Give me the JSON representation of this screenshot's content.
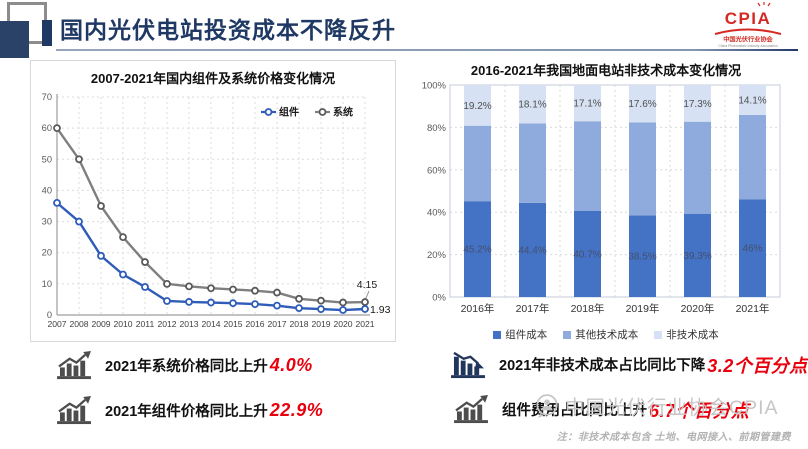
{
  "page": {
    "background": "#FFFFFF",
    "accent_navy": "#1F3864",
    "accent_red": "#E8000D"
  },
  "header": {
    "title": "国内光伏电站投资成本不降反升",
    "logo": {
      "acronym": "CPIA",
      "org_cn": "中国光伏行业协会",
      "org_en": "China Photovoltaic Industry Association",
      "color": "#D42A23"
    }
  },
  "chart_data": [
    {
      "id": "module-system-price",
      "type": "line",
      "title": "2007-2021年国内组件及系统价格变化情况",
      "x": [
        "2007",
        "2008",
        "2009",
        "2010",
        "2011",
        "2012",
        "2013",
        "2014",
        "2015",
        "2016",
        "2017",
        "2018",
        "2019",
        "2020",
        "2021"
      ],
      "series": [
        {
          "name": "组件",
          "color": "#2E5CB8",
          "marker_color": "#2E5CB8",
          "values": [
            36,
            30,
            19,
            13,
            9,
            4.5,
            4.2,
            4.0,
            3.8,
            3.5,
            3.0,
            2.2,
            1.9,
            1.6,
            1.93
          ],
          "end_label": "1.93"
        },
        {
          "name": "系统",
          "color": "#7F7F7F",
          "marker_color": "#595959",
          "values": [
            60,
            50,
            35,
            25,
            17,
            10,
            9.2,
            8.6,
            8.2,
            7.8,
            7.2,
            5.2,
            4.6,
            4.0,
            4.15
          ],
          "end_label": "4.15"
        }
      ],
      "ylim": [
        0,
        70
      ],
      "yticks": [
        0,
        10,
        20,
        30,
        40,
        50,
        60,
        70
      ],
      "grid": "dashed",
      "legend_position": "top-right"
    },
    {
      "id": "non-technical-cost-share",
      "type": "bar",
      "stacked": true,
      "title": "2016-2021年我国地面电站非技术成本变化情况",
      "categories": [
        "2016年",
        "2017年",
        "2018年",
        "2019年",
        "2020年",
        "2021年"
      ],
      "series": [
        {
          "name": "组件成本",
          "color": "#4472C4",
          "values": [
            45.2,
            44.4,
            40.7,
            38.5,
            39.3,
            46.0
          ],
          "labels": [
            "45.2%",
            "44.4%",
            "40.7%",
            "38.5%",
            "39.3%",
            "46%"
          ]
        },
        {
          "name": "其他技术成本",
          "color": "#8FAADC",
          "values": [
            35.6,
            37.5,
            42.2,
            43.9,
            43.4,
            39.9
          ],
          "labels": []
        },
        {
          "name": "非技术成本",
          "color": "#D6E2F3",
          "values": [
            19.2,
            18.1,
            17.1,
            17.6,
            17.3,
            14.1
          ],
          "labels": [
            "19.2%",
            "18.1%",
            "17.1%",
            "17.6%",
            "17.3%",
            "14.1%"
          ]
        }
      ],
      "ylim": [
        0,
        100
      ],
      "yticks": [
        "0%",
        "20%",
        "40%",
        "60%",
        "80%",
        "100%"
      ],
      "grid": "dashed",
      "legend_position": "bottom"
    }
  ],
  "annotations": {
    "left": [
      {
        "icon": "trend-up-icon",
        "text": "2021年系统价格同比上升",
        "value": "4.0%"
      },
      {
        "icon": "trend-up-icon",
        "text": "2021年组件价格同比上升",
        "value": "22.9%"
      }
    ],
    "right": [
      {
        "icon": "trend-down-icon",
        "text": "2021年非技术成本占比同比下降",
        "value": "3.2个百分点"
      },
      {
        "icon": "trend-up-icon",
        "text": "组件费用占比同比上升",
        "value": "6.7个百分点"
      }
    ]
  },
  "watermark": {
    "text": "中国光伏行业协会CPIA"
  },
  "note": "注：非技术成本包含 土地、电网接入、前期管建费"
}
